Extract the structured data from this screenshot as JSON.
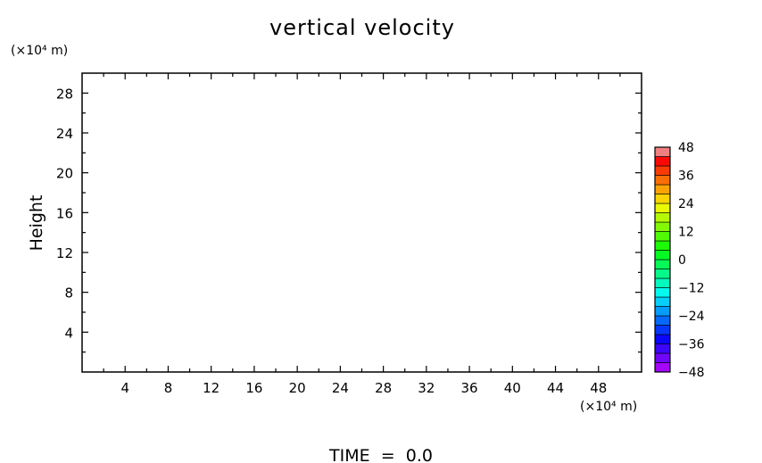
{
  "chart_data": {
    "type": "heatmap",
    "title": "vertical velocity",
    "xlabel": "",
    "ylabel": "Height",
    "x_unit_label": "(×10⁴ m)",
    "y_unit_label": "(×10⁴ m)",
    "xlim": [
      0,
      52
    ],
    "ylim": [
      0,
      30
    ],
    "x_ticks": [
      4,
      8,
      12,
      16,
      20,
      24,
      28,
      32,
      36,
      40,
      44,
      48
    ],
    "y_ticks": [
      4,
      8,
      12,
      16,
      20,
      24,
      28
    ],
    "values": [],
    "colorbar": {
      "min": -48,
      "max": 48,
      "step": 4,
      "labels": [
        "48",
        "36",
        "24",
        "12",
        "0",
        "−12",
        "−24",
        "−36",
        "−48"
      ],
      "label_values": [
        48,
        36,
        24,
        12,
        0,
        -12,
        -24,
        -36,
        -48
      ]
    },
    "footer": "TIME  =  0.0",
    "grid": false
  }
}
